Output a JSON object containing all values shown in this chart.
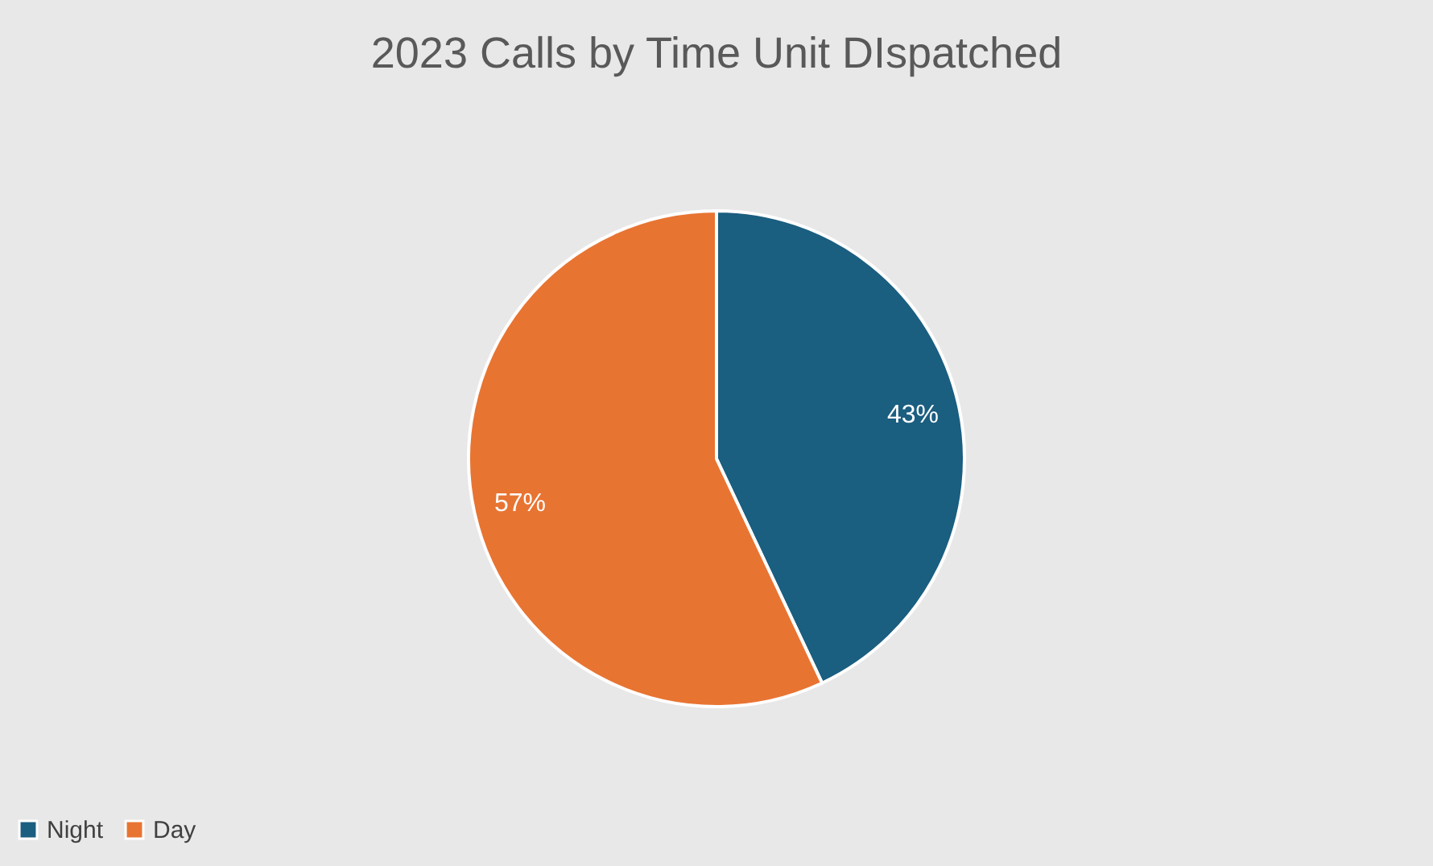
{
  "chart_data": {
    "type": "pie",
    "title": "2023 Calls by Time Unit DIspatched",
    "categories": [
      "Night",
      "Day"
    ],
    "values": [
      43,
      57
    ],
    "colors": [
      "#1a5e80",
      "#e87432"
    ],
    "value_labels": [
      "43%",
      "57%"
    ],
    "legend": "bottom"
  }
}
